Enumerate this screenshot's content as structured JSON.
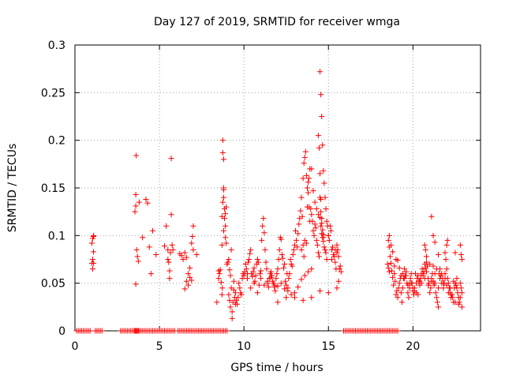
{
  "chart_data": {
    "type": "scatter",
    "title": "Day 127 of 2019, SRMTID for receiver wmga",
    "xlabel": "GPS time / hours",
    "ylabel": "SRMTID / TECUs",
    "xlim": [
      0,
      24
    ],
    "ylim": [
      0,
      0.3
    ],
    "xticks": [
      0,
      5,
      10,
      15,
      20
    ],
    "xtick_labels": [
      "0",
      "5",
      "10",
      "15",
      "20"
    ],
    "yticks": [
      0,
      0.05,
      0.1,
      0.15,
      0.2,
      0.25,
      0.3
    ],
    "ytick_labels": [
      "0",
      "0.05",
      "0.1",
      "0.15",
      "0.2",
      "0.25",
      "0.3"
    ],
    "grid": true,
    "marker": "+",
    "color": "#ff0000",
    "series": [
      {
        "name": "SRMTID",
        "x": [
          0.1,
          0.2,
          0.3,
          0.4,
          0.5,
          0.6,
          0.7,
          0.8,
          0.9,
          1.0,
          1.05,
          1.1,
          1.2,
          1.3,
          1.4,
          1.5,
          1.6,
          1.0,
          1.05,
          1.1,
          1.1,
          1.05,
          1.1,
          2.7,
          2.8,
          2.9,
          3.0,
          3.1,
          3.2,
          3.3,
          3.4,
          3.5,
          3.55,
          3.6,
          3.62,
          3.65,
          3.7,
          3.75,
          3.8,
          3.9,
          4.0,
          4.1,
          4.2,
          4.3,
          4.4,
          4.5,
          4.6,
          4.7,
          4.8,
          4.9,
          5.0,
          5.1,
          5.2,
          5.3,
          5.4,
          5.5,
          5.6,
          5.7,
          5.8,
          5.9,
          3.55,
          3.6,
          3.6,
          3.62,
          3.65,
          3.7,
          3.6,
          3.75,
          3.8,
          4.0,
          4.2,
          4.3,
          4.4,
          4.5,
          4.6,
          4.8,
          5.3,
          5.4,
          5.5,
          5.5,
          5.55,
          5.6,
          5.6,
          5.65,
          5.7,
          5.7,
          5.75,
          5.8,
          6.1,
          6.2,
          6.3,
          6.4,
          6.5,
          6.6,
          6.7,
          6.8,
          6.9,
          7.0,
          7.1,
          7.2,
          7.3,
          7.4,
          7.5,
          7.6,
          7.7,
          7.8,
          7.9,
          8.0,
          8.1,
          8.2,
          8.3,
          8.4,
          8.5,
          8.6,
          8.7,
          8.8,
          8.9,
          9.0,
          6.2,
          6.3,
          6.4,
          6.5,
          6.6,
          6.7,
          6.8,
          6.9,
          7.0,
          7.0,
          6.9,
          6.8,
          6.7,
          6.6,
          6.5,
          7.2,
          6.95,
          8.4,
          8.5,
          8.5,
          8.55,
          8.6,
          8.65,
          8.7,
          8.72,
          8.75,
          8.75,
          8.8,
          8.8,
          8.8,
          8.85,
          8.9,
          8.9,
          8.95,
          8.7,
          8.7,
          8.75,
          8.8,
          8.8,
          8.85,
          8.9,
          8.95,
          9.0,
          9.05,
          9.1,
          9.15,
          9.2,
          9.25,
          9.1,
          9.15,
          9.2,
          9.25,
          9.3,
          9.3,
          9.35,
          9.4,
          9.4,
          9.45,
          9.5,
          9.5,
          9.55,
          9.6,
          9.65,
          9.7,
          9.75,
          9.8,
          9.85,
          9.9,
          9.95,
          10.0,
          10.05,
          10.1,
          10.15,
          10.2,
          10.25,
          10.3,
          10.35,
          10.4,
          10.45,
          10.5,
          10.55,
          10.6,
          10.65,
          10.7,
          10.75,
          10.8,
          10.85,
          10.9,
          10.95,
          11.0,
          11.05,
          11.1,
          11.15,
          11.2,
          11.25,
          11.3,
          11.35,
          11.4,
          11.45,
          11.5,
          11.55,
          11.6,
          11.65,
          11.7,
          11.75,
          11.8,
          11.85,
          11.9,
          11.95,
          12.0,
          12.05,
          12.1,
          12.15,
          12.2,
          12.25,
          12.3,
          12.35,
          12.4,
          12.45,
          12.5,
          12.55,
          12.6,
          12.65,
          12.7,
          12.75,
          12.8,
          12.85,
          12.9,
          12.95,
          13.0,
          13.05,
          13.1,
          13.15,
          13.2,
          13.25,
          13.3,
          13.35,
          13.4,
          13.45,
          13.5,
          13.55,
          13.6,
          13.65,
          13.7,
          13.75,
          13.8,
          13.85,
          13.9,
          13.95,
          14.0,
          14.05,
          14.1,
          14.15,
          14.2,
          14.25,
          14.3,
          14.35,
          14.4,
          14.45,
          14.5,
          14.55,
          14.6,
          14.65,
          14.7,
          14.75,
          14.8,
          14.85,
          14.9,
          14.95,
          15.0,
          15.05,
          15.1,
          15.15,
          15.2,
          15.25,
          15.3,
          15.35,
          15.4,
          15.45,
          15.5,
          15.55,
          15.6,
          15.65,
          15.7,
          15.75,
          10.2,
          10.4,
          10.6,
          10.8,
          11.0,
          11.2,
          11.4,
          11.6,
          11.8,
          12.0,
          12.2,
          12.4,
          12.6,
          12.8,
          13.0,
          13.2,
          13.4,
          13.6,
          13.8,
          14.0,
          13.4,
          13.5,
          13.55,
          13.6,
          13.7,
          13.75,
          13.8,
          13.85,
          13.9,
          14.0,
          14.1,
          14.2,
          14.3,
          14.4,
          14.5,
          14.55,
          14.6,
          14.65,
          14.7,
          14.75,
          14.8,
          14.85,
          14.9,
          15.0,
          15.2,
          15.4,
          15.5,
          15.6,
          14.4,
          14.45,
          14.5,
          14.5,
          14.55,
          14.55,
          14.6,
          14.6,
          14.65,
          14.7,
          14.7,
          12.0,
          12.5,
          13.0,
          13.5,
          14.0,
          14.5,
          15.0,
          15.5,
          15.9,
          16.0,
          16.1,
          16.2,
          16.3,
          16.4,
          16.5,
          16.6,
          16.7,
          16.8,
          16.9,
          17.0,
          17.1,
          17.2,
          17.3,
          17.4,
          17.5,
          17.6,
          17.7,
          17.8,
          17.9,
          18.0,
          18.1,
          18.2,
          18.3,
          18.4,
          18.5,
          18.6,
          18.7,
          18.8,
          18.9,
          19.0,
          19.1,
          18.5,
          18.55,
          18.6,
          18.65,
          18.7,
          18.75,
          18.8,
          18.85,
          18.9,
          18.95,
          19.0,
          19.05,
          19.1,
          19.15,
          19.2,
          19.25,
          19.3,
          19.35,
          19.4,
          19.45,
          19.5,
          19.55,
          19.6,
          19.65,
          19.7,
          19.75,
          19.8,
          19.85,
          19.9,
          19.95,
          20.0,
          20.05,
          20.1,
          20.15,
          20.2,
          20.25,
          20.3,
          20.35,
          20.4,
          20.45,
          20.5,
          20.55,
          20.6,
          20.65,
          20.7,
          20.75,
          20.8,
          20.85,
          20.9,
          20.95,
          21.0,
          21.05,
          21.1,
          21.15,
          21.2,
          21.25,
          21.3,
          21.35,
          21.4,
          21.45,
          21.5,
          21.55,
          21.6,
          21.65,
          21.7,
          21.75,
          21.8,
          21.85,
          21.9,
          21.95,
          22.0,
          22.05,
          22.1,
          22.15,
          22.2,
          22.25,
          22.3,
          22.35,
          22.4,
          22.45,
          22.5,
          22.55,
          22.6,
          22.65,
          22.7,
          22.75,
          22.8,
          22.85,
          22.9,
          18.6,
          18.8,
          19.0,
          19.2,
          19.4,
          19.6,
          19.8,
          20.0,
          20.2,
          20.4,
          20.6,
          20.8,
          21.0,
          21.2,
          21.4,
          21.6,
          21.8,
          22.0,
          22.2,
          22.4,
          22.6,
          22.8,
          18.55,
          18.6,
          18.7,
          18.9,
          19.1,
          19.3,
          19.5,
          19.7,
          19.9,
          20.1,
          20.3,
          20.5,
          20.7,
          20.9,
          21.1,
          21.3,
          21.5,
          21.7,
          21.9,
          22.1,
          22.3,
          22.5,
          22.7,
          22.9,
          20.7,
          20.75,
          20.8,
          21.1,
          21.2,
          21.3,
          21.5,
          21.9,
          22.0,
          22.05,
          22.5,
          22.8,
          22.85,
          22.9
        ],
        "y": [
          0,
          0,
          0,
          0,
          0,
          0,
          0,
          0,
          0,
          0.071,
          0.075,
          0.083,
          0,
          0,
          0,
          0,
          0,
          0.092,
          0.097,
          0.099,
          0.1,
          0.065,
          0.071,
          0,
          0,
          0,
          0,
          0,
          0,
          0,
          0,
          0,
          0,
          0,
          0,
          0,
          0,
          0,
          0,
          0,
          0,
          0,
          0,
          0,
          0,
          0,
          0,
          0,
          0,
          0,
          0,
          0,
          0,
          0,
          0,
          0,
          0,
          0,
          0,
          0,
          0.125,
          0.131,
          0.143,
          0.184,
          0.085,
          0.078,
          0.049,
          0.073,
          0.135,
          0.098,
          0.138,
          0.134,
          0.088,
          0.06,
          0.105,
          0.08,
          0.089,
          0.11,
          0.085,
          0.075,
          0.072,
          0.063,
          0.055,
          0.082,
          0.122,
          0.181,
          0.09,
          0.085,
          0,
          0,
          0,
          0,
          0,
          0,
          0,
          0,
          0,
          0,
          0,
          0,
          0,
          0,
          0,
          0,
          0,
          0,
          0,
          0,
          0,
          0,
          0,
          0,
          0,
          0,
          0,
          0,
          0,
          0,
          0.081,
          0.079,
          0.075,
          0.082,
          0.077,
          0.06,
          0.056,
          0.053,
          0.085,
          0.11,
          0.092,
          0.066,
          0.048,
          0.052,
          0.044,
          0.08,
          0.099,
          0.03,
          0.055,
          0.063,
          0.06,
          0.064,
          0.051,
          0.038,
          0.045,
          0.2,
          0.187,
          0.18,
          0.148,
          0.14,
          0.118,
          0.11,
          0.123,
          0.13,
          0.09,
          0.12,
          0.135,
          0.15,
          0.105,
          0.128,
          0.098,
          0.092,
          0.07,
          0.072,
          0.075,
          0.064,
          0.058,
          0.085,
          0.038,
          0.032,
          0.025,
          0.045,
          0.013,
          0.02,
          0.03,
          0.052,
          0.043,
          0.035,
          0.028,
          0.04,
          0.032,
          0.028,
          0.035,
          0.05,
          0.045,
          0.04,
          0.038,
          0.055,
          0.06,
          0.058,
          0.062,
          0.07,
          0.065,
          0.055,
          0.072,
          0.075,
          0.081,
          0.085,
          0.06,
          0.057,
          0.062,
          0.066,
          0.052,
          0.058,
          0.07,
          0.075,
          0.072,
          0.048,
          0.06,
          0.063,
          0.095,
          0.11,
          0.118,
          0.103,
          0.085,
          0.072,
          0.065,
          0.05,
          0.046,
          0.055,
          0.06,
          0.062,
          0.058,
          0.052,
          0.05,
          0.046,
          0.042,
          0.055,
          0.06,
          0.065,
          0.075,
          0.085,
          0.098,
          0.096,
          0.08,
          0.076,
          0.066,
          0.07,
          0.052,
          0.048,
          0.06,
          0.045,
          0.055,
          0.06,
          0.075,
          0.07,
          0.068,
          0.08,
          0.085,
          0.09,
          0.105,
          0.095,
          0.088,
          0.102,
          0.112,
          0.118,
          0.126,
          0.14,
          0.12,
          0.16,
          0.176,
          0.182,
          0.188,
          0.163,
          0.15,
          0.156,
          0.13,
          0.115,
          0.128,
          0.122,
          0.115,
          0.105,
          0.1,
          0.112,
          0.108,
          0.095,
          0.09,
          0.082,
          0.078,
          0.272,
          0.248,
          0.225,
          0.195,
          0.168,
          0.155,
          0.14,
          0.128,
          0.115,
          0.11,
          0.1,
          0.095,
          0.11,
          0.105,
          0.085,
          0.088,
          0.08,
          0.078,
          0.072,
          0.065,
          0.09,
          0.085,
          0.078,
          0.065,
          0.068,
          0.062,
          0.06,
          0.045,
          0.05,
          0.04,
          0.055,
          0.048,
          0.052,
          0.056,
          0.048,
          0.047,
          0.05,
          0.044,
          0.042,
          0.038,
          0.035,
          0.046,
          0.054,
          0.058,
          0.062,
          0.065,
          0.085,
          0.09,
          0.078,
          0.095,
          0.092,
          0.13,
          0.145,
          0.16,
          0.17,
          0.17,
          0.147,
          0.135,
          0.128,
          0.122,
          0.119,
          0.11,
          0.102,
          0.098,
          0.094,
          0.088,
          0.085,
          0.082,
          0.075,
          0.1,
          0.075,
          0.085,
          0.082,
          0.052,
          0.205,
          0.192,
          0.165,
          0.14,
          0.138,
          0.125,
          0.118,
          0.113,
          0.106,
          0.101,
          0.098,
          0.03,
          0.035,
          0.04,
          0.032,
          0.035,
          0.042,
          0.04,
          0.045,
          0,
          0,
          0,
          0,
          0,
          0,
          0,
          0,
          0,
          0,
          0,
          0,
          0,
          0,
          0,
          0,
          0,
          0,
          0,
          0,
          0,
          0,
          0,
          0,
          0,
          0,
          0,
          0,
          0,
          0,
          0,
          0,
          0,
          0.07,
          0.066,
          0.062,
          0.078,
          0.071,
          0.063,
          0.056,
          0.048,
          0.06,
          0.052,
          0.038,
          0.042,
          0.035,
          0.045,
          0.05,
          0.055,
          0.04,
          0.03,
          0.045,
          0.055,
          0.065,
          0.058,
          0.062,
          0.05,
          0.04,
          0.035,
          0.045,
          0.055,
          0.06,
          0.05,
          0.042,
          0.038,
          0.045,
          0.06,
          0.05,
          0.055,
          0.058,
          0.052,
          0.048,
          0.055,
          0.06,
          0.065,
          0.058,
          0.062,
          0.07,
          0.066,
          0.072,
          0.068,
          0.055,
          0.05,
          0.04,
          0.045,
          0.055,
          0.06,
          0.052,
          0.048,
          0.05,
          0.04,
          0.035,
          0.03,
          0.025,
          0.06,
          0.065,
          0.058,
          0.06,
          0.055,
          0.045,
          0.05,
          0.06,
          0.075,
          0.065,
          0.055,
          0.05,
          0.045,
          0.04,
          0.035,
          0.038,
          0.035,
          0.03,
          0.045,
          0.05,
          0.048,
          0.055,
          0.04,
          0.035,
          0.03,
          0.05,
          0.045,
          0.04,
          0.088,
          0.083,
          0.075,
          0.066,
          0.06,
          0.058,
          0.05,
          0.045,
          0.04,
          0.052,
          0.06,
          0.062,
          0.07,
          0.068,
          0.065,
          0.055,
          0.05,
          0.048,
          0.045,
          0.052,
          0.045,
          0.035,
          0.095,
          0.1,
          0.09,
          0.068,
          0.074,
          0.058,
          0.055,
          0.048,
          0.05,
          0.042,
          0.038,
          0.05,
          0.055,
          0.048,
          0.052,
          0.06,
          0.045,
          0.05,
          0.055,
          0.04,
          0.038,
          0.03,
          0.028,
          0.025,
          0.09,
          0.085,
          0.078,
          0.12,
          0.1,
          0.093,
          0.08,
          0.082,
          0.09,
          0.095,
          0.082,
          0.09,
          0.08,
          0.075
        ]
      }
    ]
  }
}
